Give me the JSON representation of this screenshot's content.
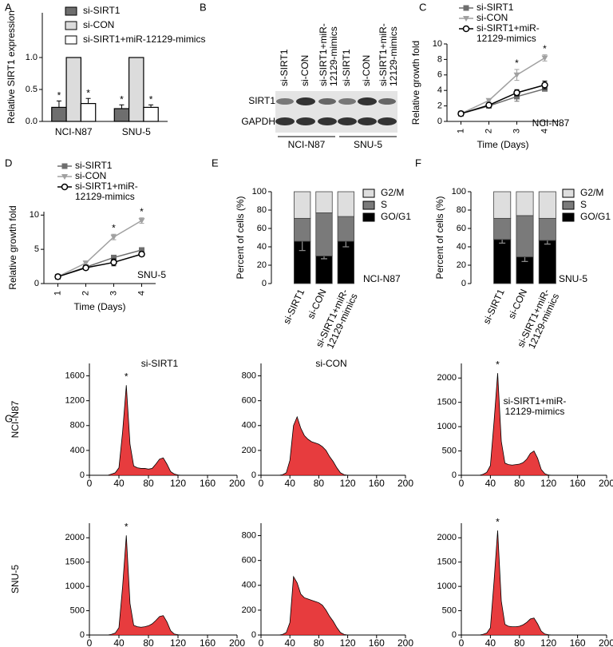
{
  "panel_labels": [
    "A",
    "B",
    "C",
    "D",
    "E",
    "F",
    "G"
  ],
  "blot": {
    "lanes": [
      "si-SIRT1",
      "si-CON",
      "si-SIRT1+miR-12129-mimics",
      "si-SIRT1",
      "si-CON",
      "si-SIRT1+miR-12129-mimics"
    ],
    "rows": [
      "SIRT1",
      "GAPDH"
    ],
    "groups": [
      "NCI-N87",
      "SNU-5"
    ]
  },
  "flow": {
    "columns": [
      "si-SIRT1",
      "si-CON",
      "si-SIRT1+miR-12129-mimics"
    ],
    "rows": [
      "NCI-N87",
      "SNU-5"
    ]
  },
  "chart_data": [
    {
      "type": "bar",
      "ylabel": "Relative SIRT1 expression",
      "categories": [
        "NCI-N87",
        "SNU-5"
      ],
      "ylim": [
        0,
        1.7
      ],
      "yticks": [
        {
          "value": 0,
          "label": "0.0"
        },
        {
          "value": 0.5,
          "label": "0.5"
        },
        {
          "value": 1,
          "label": "1.0"
        }
      ],
      "series": [
        {
          "name": "si-SIRT1",
          "color": "#6e6e6e",
          "values": [
            0.22,
            0.2
          ],
          "errors": [
            0.1,
            0.06
          ],
          "stars": [
            "*",
            "*"
          ]
        },
        {
          "name": "si-CON",
          "color": "#dcdcdc",
          "values": [
            1,
            1
          ]
        },
        {
          "name": "si-SIRT1+miR-12129-mimics",
          "color": "#ffffff",
          "values": [
            0.28,
            0.22
          ],
          "errors": [
            0.08,
            0.04
          ],
          "stars": [
            "*",
            "*"
          ]
        }
      ]
    },
    {
      "type": "line",
      "xlabel": "Time (Days)",
      "ylabel": "Relative growth fold",
      "annotation": "NCI-N87",
      "x": [
        1,
        2,
        3,
        4
      ],
      "xlim": [
        0.5,
        4.5
      ],
      "xticks": [
        1,
        2,
        3,
        4
      ],
      "ylim": [
        0,
        10
      ],
      "yticks": [
        0,
        2,
        4,
        6,
        8,
        10
      ],
      "series": [
        {
          "name": "si-SIRT1",
          "color": "#6e6e6e",
          "marker": "square",
          "values": [
            1,
            2,
            3.2,
            4.2
          ],
          "errors": [
            0.05,
            0.1,
            0.6,
            0.2
          ]
        },
        {
          "name": "si-CON",
          "color": "#a0a0a0",
          "marker": "triangle",
          "values": [
            1,
            2.7,
            6,
            8.2
          ],
          "errors": [
            0.05,
            0.2,
            0.7,
            0.4
          ],
          "stars": [
            null,
            null,
            "*",
            "*"
          ]
        },
        {
          "name": "si-SIRT1+miR-12129-mimics",
          "color": "#000000",
          "marker": "circle",
          "values": [
            1,
            2.1,
            3.7,
            4.7
          ],
          "errors": [
            0.05,
            0.15,
            0.4,
            0.5
          ]
        }
      ]
    },
    {
      "type": "line",
      "xlabel": "Time (Days)",
      "ylabel": "Relative growth fold",
      "annotation": "SNU-5",
      "x": [
        1,
        2,
        3,
        4
      ],
      "xlim": [
        0.5,
        4.5
      ],
      "xticks": [
        1,
        2,
        3,
        4
      ],
      "ylim": [
        0,
        10.5
      ],
      "yticks": [
        0,
        5,
        10
      ],
      "series": [
        {
          "name": "si-SIRT1",
          "color": "#6e6e6e",
          "marker": "square",
          "values": [
            1,
            2.4,
            3.8,
            4.9
          ],
          "errors": [
            0.05,
            0.2,
            0.3,
            0.2
          ]
        },
        {
          "name": "si-CON",
          "color": "#a0a0a0",
          "marker": "triangle",
          "values": [
            1,
            3,
            6.8,
            9.2
          ],
          "errors": [
            0.05,
            0.3,
            0.4,
            0.4
          ],
          "stars": [
            null,
            null,
            "*",
            "*"
          ]
        },
        {
          "name": "si-SIRT1+miR-12129-mimics",
          "color": "#000000",
          "marker": "circle",
          "values": [
            1,
            2.3,
            3.1,
            4.3
          ],
          "errors": [
            0.05,
            0.2,
            0.5,
            0.3
          ]
        }
      ]
    },
    {
      "type": "stacked_bar",
      "ylabel": "Percent of cells (%)",
      "annotation": "NCI-N87",
      "categories": [
        "si-SIRT1",
        "si-CON",
        "si-SIRT1+miR-12129-mimics"
      ],
      "ylim": [
        0,
        100
      ],
      "yticks": [
        0,
        20,
        40,
        60,
        80,
        100
      ],
      "series": [
        {
          "name": "GO/G1",
          "color": "#000000",
          "values": [
            46,
            30,
            46
          ],
          "errors": [
            10,
            3,
            6
          ],
          "stars": [
            "*",
            null,
            "*"
          ]
        },
        {
          "name": "S",
          "color": "#7a7a7a",
          "values": [
            25,
            47,
            27
          ]
        },
        {
          "name": "G2/M",
          "color": "#dedede",
          "values": [
            29,
            23,
            27
          ]
        }
      ]
    },
    {
      "type": "stacked_bar",
      "ylabel": "Percent of cells (%)",
      "annotation": "SNU-5",
      "categories": [
        "si-SIRT1",
        "si-CON",
        "si-SIRT1+miR-12129-mimics"
      ],
      "ylim": [
        0,
        100
      ],
      "yticks": [
        0,
        20,
        40,
        60,
        80,
        100
      ],
      "series": [
        {
          "name": "GO/G1",
          "color": "#000000",
          "values": [
            48,
            29,
            47
          ],
          "errors": [
            4,
            5,
            4
          ],
          "stars": [
            "*",
            null,
            "*"
          ]
        },
        {
          "name": "S",
          "color": "#7a7a7a",
          "values": [
            23,
            45,
            24
          ]
        },
        {
          "name": "G2/M",
          "color": "#dedede",
          "values": [
            29,
            26,
            29
          ]
        }
      ]
    },
    {
      "type": "area",
      "color": "#e31a1c",
      "star": "*",
      "x": [
        25,
        30,
        35,
        40,
        45,
        50,
        55,
        60,
        65,
        70,
        75,
        80,
        85,
        90,
        95,
        100,
        105,
        110,
        115,
        120,
        125,
        130
      ],
      "values": [
        0,
        20,
        40,
        120,
        700,
        1450,
        500,
        150,
        120,
        110,
        110,
        100,
        110,
        180,
        260,
        280,
        180,
        60,
        20,
        5,
        0,
        0
      ],
      "xlim": [
        0,
        200
      ],
      "xticks": [
        0,
        40,
        80,
        120,
        160,
        200
      ],
      "ylim": [
        0,
        1800
      ],
      "yticks": [
        0,
        400,
        800,
        1200,
        1600
      ]
    },
    {
      "type": "area",
      "color": "#e31a1c",
      "x": [
        25,
        30,
        35,
        40,
        45,
        50,
        55,
        60,
        65,
        70,
        75,
        80,
        85,
        90,
        95,
        100,
        105,
        110,
        115,
        120,
        125,
        130
      ],
      "values": [
        0,
        5,
        20,
        120,
        400,
        470,
        380,
        320,
        290,
        270,
        260,
        250,
        230,
        200,
        150,
        110,
        60,
        20,
        5,
        0,
        0,
        0
      ],
      "xlim": [
        0,
        200
      ],
      "xticks": [
        0,
        40,
        80,
        120,
        160,
        200
      ],
      "ylim": [
        0,
        900
      ],
      "yticks": [
        0,
        200,
        400,
        600,
        800
      ]
    },
    {
      "type": "area",
      "color": "#e31a1c",
      "star": "*",
      "x": [
        25,
        30,
        35,
        40,
        45,
        50,
        55,
        60,
        65,
        70,
        75,
        80,
        85,
        90,
        95,
        100,
        105,
        110,
        115,
        120,
        125,
        130
      ],
      "values": [
        0,
        20,
        60,
        200,
        1100,
        2100,
        700,
        250,
        220,
        210,
        220,
        230,
        260,
        330,
        450,
        500,
        350,
        120,
        30,
        5,
        0,
        0
      ],
      "xlim": [
        0,
        200
      ],
      "xticks": [
        0,
        40,
        80,
        120,
        160,
        200
      ],
      "ylim": [
        0,
        2300
      ],
      "yticks": [
        0,
        500,
        1000,
        1500,
        2000
      ]
    },
    {
      "type": "area",
      "color": "#e31a1c",
      "star": "*",
      "x": [
        25,
        30,
        35,
        40,
        45,
        50,
        55,
        60,
        65,
        70,
        75,
        80,
        85,
        90,
        95,
        100,
        105,
        110,
        115,
        120,
        125,
        130
      ],
      "values": [
        0,
        15,
        40,
        150,
        1000,
        2050,
        650,
        200,
        170,
        160,
        170,
        190,
        230,
        300,
        380,
        400,
        270,
        90,
        20,
        5,
        0,
        0
      ],
      "xlim": [
        0,
        200
      ],
      "xticks": [
        0,
        40,
        80,
        120,
        160,
        200
      ],
      "ylim": [
        0,
        2300
      ],
      "yticks": [
        0,
        500,
        1000,
        1500,
        2000
      ]
    },
    {
      "type": "area",
      "color": "#e31a1c",
      "x": [
        25,
        30,
        35,
        40,
        45,
        50,
        55,
        60,
        65,
        70,
        75,
        80,
        85,
        90,
        95,
        100,
        105,
        110,
        115,
        120,
        125,
        130
      ],
      "values": [
        0,
        5,
        20,
        100,
        470,
        420,
        330,
        300,
        290,
        280,
        270,
        260,
        240,
        200,
        150,
        110,
        60,
        20,
        5,
        0,
        0,
        0
      ],
      "xlim": [
        0,
        200
      ],
      "xticks": [
        0,
        40,
        80,
        120,
        160,
        200
      ],
      "ylim": [
        0,
        900
      ],
      "yticks": [
        0,
        200,
        400,
        600,
        800
      ]
    },
    {
      "type": "area",
      "color": "#e31a1c",
      "star": "*",
      "x": [
        25,
        30,
        35,
        40,
        45,
        50,
        55,
        60,
        65,
        70,
        75,
        80,
        85,
        90,
        95,
        100,
        105,
        110,
        115,
        120,
        125,
        130
      ],
      "values": [
        0,
        15,
        40,
        150,
        1100,
        2150,
        700,
        220,
        180,
        170,
        170,
        180,
        210,
        260,
        330,
        350,
        230,
        80,
        20,
        5,
        0,
        0
      ],
      "xlim": [
        0,
        200
      ],
      "xticks": [
        0,
        40,
        80,
        120,
        160,
        200
      ],
      "ylim": [
        0,
        2300
      ],
      "yticks": [
        0,
        500,
        1000,
        1500,
        2000
      ]
    }
  ]
}
